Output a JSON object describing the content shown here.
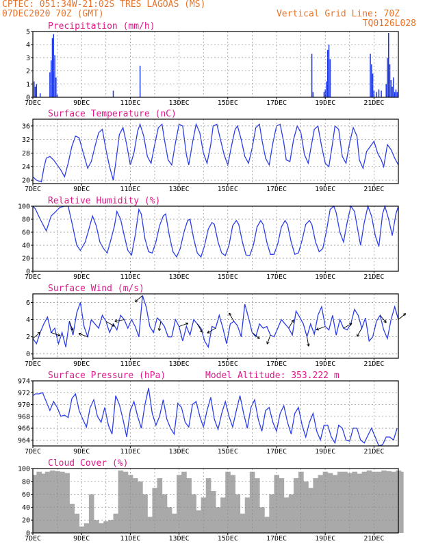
{
  "header": {
    "line1": "CPTEC:  051:34W-21:02S  TRES LAGOAS (MS)",
    "line2_left": "07DEC2020 70Z (GMT)",
    "line2_right": "Vertical Grid Line: 70Z",
    "line3_right": "TQ0126L028"
  },
  "x_axis": {
    "ticks": [
      {
        "d": 0,
        "label": "7DEC"
      },
      {
        "d": 2,
        "label": "9DEC"
      },
      {
        "d": 4,
        "label": "11DEC"
      },
      {
        "d": 6,
        "label": "13DEC"
      },
      {
        "d": 8,
        "label": "15DEC"
      },
      {
        "d": 10,
        "label": "17DEC"
      },
      {
        "d": 12,
        "label": "19DEC"
      },
      {
        "d": 14,
        "label": "21DEC"
      }
    ]
  },
  "chart_data": [
    {
      "id": "precip",
      "type": "bar",
      "title": "Precipitation (mm/h)",
      "ylim": [
        0,
        5
      ],
      "yticks": [
        0,
        1,
        2,
        3,
        4,
        5
      ],
      "color": "#1a36e8",
      "x_unit": "days since 07DEC2020 00Z",
      "x": [
        0.05,
        0.1,
        0.15,
        0.3,
        0.7,
        0.75,
        0.8,
        0.85,
        0.9,
        0.95,
        1.0,
        3.3,
        4.4,
        11.45,
        11.5,
        11.95,
        12.0,
        12.05,
        12.1,
        12.15,
        12.2,
        13.85,
        13.9,
        13.95,
        14.0,
        14.1,
        14.2,
        14.3,
        14.5,
        14.55,
        14.6,
        14.65,
        14.7,
        14.75,
        14.8,
        14.85,
        14.9,
        14.95
      ],
      "values": [
        1.2,
        0.8,
        1.0,
        0.3,
        1.9,
        2.8,
        4.5,
        4.8,
        3.2,
        1.5,
        0.2,
        0.5,
        2.4,
        3.3,
        0.4,
        0.4,
        0.6,
        1.2,
        3.6,
        4.0,
        2.9,
        3.3,
        2.5,
        1.8,
        0.5,
        0.4,
        0.6,
        0.5,
        1.0,
        3.0,
        4.9,
        2.5,
        1.3,
        0.8,
        1.5,
        0.4,
        0.6,
        0.4
      ]
    },
    {
      "id": "temp",
      "type": "line",
      "title": "Surface Temperature (nC)",
      "ylim": [
        19,
        38
      ],
      "yticks": [
        20,
        24,
        28,
        32,
        36
      ],
      "color": "#2a3de8",
      "x_unit": "days since 07DEC2020 00Z",
      "x": [
        0.0,
        0.15,
        0.35,
        0.45,
        0.55,
        0.7,
        0.85,
        1.0,
        1.15,
        1.3,
        1.45,
        1.6,
        1.75,
        1.9,
        2.05,
        2.25,
        2.4,
        2.55,
        2.7,
        2.85,
        3.0,
        3.15,
        3.3,
        3.4,
        3.55,
        3.7,
        3.85,
        4.0,
        4.15,
        4.3,
        4.4,
        4.55,
        4.7,
        4.85,
        5.0,
        5.15,
        5.3,
        5.4,
        5.55,
        5.7,
        5.85,
        6.0,
        6.15,
        6.3,
        6.4,
        6.55,
        6.7,
        6.85,
        7.0,
        7.15,
        7.3,
        7.4,
        7.55,
        7.7,
        7.85,
        8.0,
        8.15,
        8.3,
        8.4,
        8.55,
        8.7,
        8.85,
        9.0,
        9.15,
        9.3,
        9.4,
        9.55,
        9.7,
        9.85,
        10.0,
        10.15,
        10.3,
        10.4,
        10.55,
        10.7,
        10.85,
        11.0,
        11.15,
        11.3,
        11.4,
        11.55,
        11.7,
        11.85,
        12.0,
        12.15,
        12.3,
        12.4,
        12.55,
        12.7,
        12.85,
        13.0,
        13.15,
        13.3,
        13.4,
        13.55,
        13.7,
        13.85,
        14.0,
        14.15,
        14.3,
        14.4,
        14.55,
        14.7,
        14.85,
        15.0
      ],
      "values": [
        21.0,
        20.0,
        19.5,
        23.5,
        26.5,
        27.0,
        26.0,
        24.5,
        23.0,
        21.0,
        25.0,
        30.0,
        33.0,
        32.5,
        28.5,
        23.5,
        25.5,
        30.0,
        34.0,
        35.0,
        29.0,
        24.0,
        20.0,
        25.0,
        33.5,
        35.5,
        30.5,
        24.5,
        28.0,
        34.5,
        36.5,
        33.0,
        27.0,
        25.0,
        30.5,
        35.5,
        36.5,
        32.0,
        26.0,
        24.5,
        31.0,
        36.5,
        36.0,
        27.5,
        24.5,
        31.0,
        36.5,
        34.0,
        28.0,
        25.0,
        30.5,
        36.0,
        36.5,
        32.0,
        27.5,
        24.5,
        30.0,
        35.0,
        36.0,
        32.0,
        27.0,
        25.0,
        29.5,
        35.5,
        36.5,
        32.0,
        26.5,
        24.5,
        31.0,
        36.0,
        36.5,
        31.0,
        26.0,
        25.5,
        32.0,
        36.0,
        34.0,
        27.5,
        25.0,
        29.0,
        35.0,
        36.0,
        30.0,
        25.0,
        24.0,
        31.0,
        36.0,
        35.0,
        27.0,
        25.0,
        31.0,
        35.5,
        33.0,
        26.0,
        23.5,
        28.5,
        30.0,
        31.5,
        28.0,
        26.0,
        24.0,
        30.5,
        29.0,
        26.5,
        24.5
      ]
    },
    {
      "id": "rh",
      "type": "line",
      "title": "Relative Humidity (%)",
      "ylim": [
        0,
        100
      ],
      "yticks": [
        0,
        20,
        40,
        60,
        80,
        100
      ],
      "color": "#2a3de8",
      "x_unit": "days since 07DEC2020 00Z",
      "x": [
        0.0,
        0.1,
        0.3,
        0.55,
        0.75,
        0.95,
        1.1,
        1.3,
        1.45,
        1.6,
        1.8,
        1.95,
        2.15,
        2.3,
        2.45,
        2.6,
        2.75,
        2.9,
        3.05,
        3.2,
        3.35,
        3.45,
        3.6,
        3.75,
        3.9,
        4.05,
        4.2,
        4.35,
        4.45,
        4.6,
        4.75,
        4.9,
        5.05,
        5.2,
        5.35,
        5.45,
        5.6,
        5.75,
        5.9,
        6.05,
        6.2,
        6.35,
        6.45,
        6.6,
        6.75,
        6.9,
        7.05,
        7.2,
        7.35,
        7.45,
        7.6,
        7.75,
        7.9,
        8.05,
        8.2,
        8.35,
        8.45,
        8.6,
        8.75,
        8.9,
        9.05,
        9.2,
        9.35,
        9.45,
        9.6,
        9.75,
        9.9,
        10.05,
        10.2,
        10.35,
        10.45,
        10.6,
        10.75,
        10.9,
        11.05,
        11.2,
        11.35,
        11.45,
        11.6,
        11.75,
        11.9,
        12.05,
        12.2,
        12.35,
        12.45,
        12.6,
        12.75,
        12.9,
        13.05,
        13.2,
        13.35,
        13.45,
        13.6,
        13.75,
        13.9,
        14.05,
        14.2,
        14.35,
        14.45,
        14.6,
        14.75,
        14.9,
        15.0
      ],
      "values": [
        100,
        96,
        80,
        62,
        85,
        92,
        98,
        100,
        100,
        75,
        40,
        32,
        45,
        65,
        85,
        70,
        45,
        35,
        28,
        48,
        70,
        92,
        80,
        55,
        32,
        25,
        55,
        95,
        88,
        50,
        30,
        28,
        45,
        70,
        85,
        88,
        55,
        30,
        22,
        35,
        60,
        78,
        80,
        50,
        28,
        22,
        40,
        65,
        75,
        72,
        45,
        28,
        24,
        40,
        70,
        78,
        72,
        45,
        25,
        24,
        40,
        68,
        78,
        72,
        45,
        26,
        26,
        42,
        68,
        78,
        72,
        45,
        26,
        28,
        48,
        72,
        78,
        72,
        45,
        30,
        35,
        62,
        95,
        100,
        90,
        60,
        45,
        75,
        100,
        92,
        60,
        40,
        75,
        100,
        85,
        55,
        38,
        88,
        100,
        80,
        55,
        88,
        100
      ]
    },
    {
      "id": "wind",
      "type": "line",
      "title": "Surface Wind (m/s)",
      "ylim": [
        -0.5,
        7.0
      ],
      "yticks": [
        0,
        2,
        4,
        6
      ],
      "color": "#2a3de8",
      "x_unit": "days since 07DEC2020 00Z",
      "x": [
        0.0,
        0.15,
        0.3,
        0.45,
        0.6,
        0.75,
        0.9,
        1.05,
        1.2,
        1.35,
        1.5,
        1.65,
        1.8,
        1.95,
        2.1,
        2.25,
        2.4,
        2.55,
        2.7,
        2.85,
        3.0,
        3.15,
        3.3,
        3.45,
        3.6,
        3.75,
        3.9,
        4.05,
        4.2,
        4.35,
        4.5,
        4.65,
        4.8,
        4.95,
        5.1,
        5.25,
        5.4,
        5.55,
        5.7,
        5.85,
        6.0,
        6.15,
        6.3,
        6.45,
        6.6,
        6.75,
        6.9,
        7.05,
        7.2,
        7.35,
        7.5,
        7.65,
        7.8,
        7.95,
        8.1,
        8.25,
        8.4,
        8.55,
        8.7,
        8.85,
        9.0,
        9.15,
        9.3,
        9.45,
        9.6,
        9.75,
        9.9,
        10.05,
        10.2,
        10.35,
        10.5,
        10.65,
        10.8,
        10.95,
        11.1,
        11.25,
        11.4,
        11.55,
        11.7,
        11.85,
        12.0,
        12.15,
        12.3,
        12.45,
        12.6,
        12.75,
        12.9,
        13.05,
        13.2,
        13.35,
        13.5,
        13.65,
        13.8,
        13.95,
        14.1,
        14.25,
        14.4,
        14.55,
        14.7,
        14.85,
        15.0
      ],
      "values": [
        1.8,
        1.2,
        2.5,
        3.5,
        4.3,
        2.5,
        3.0,
        1.2,
        2.5,
        0.8,
        3.8,
        2.2,
        4.8,
        6.0,
        3.2,
        2.0,
        4.0,
        3.5,
        3.0,
        4.5,
        3.8,
        2.5,
        3.5,
        2.8,
        4.5,
        4.0,
        3.0,
        4.0,
        3.2,
        2.0,
        6.8,
        5.5,
        3.2,
        2.5,
        4.2,
        3.8,
        3.2,
        2.0,
        2.0,
        4.0,
        3.2,
        1.5,
        3.2,
        2.2,
        4.0,
        3.5,
        3.0,
        1.5,
        0.8,
        3.2,
        3.0,
        4.5,
        3.0,
        1.2,
        3.5,
        3.8,
        3.3,
        2.0,
        5.8,
        4.2,
        2.5,
        2.0,
        3.5,
        3.0,
        3.2,
        2.2,
        2.0,
        3.0,
        4.0,
        3.5,
        3.0,
        2.2,
        5.0,
        4.3,
        3.5,
        2.0,
        3.5,
        2.3,
        4.5,
        5.5,
        3.2,
        2.8,
        4.5,
        2.2,
        4.0,
        3.0,
        2.8,
        3.5,
        5.2,
        4.5,
        3.0,
        4.2,
        1.5,
        2.0,
        3.8,
        4.5,
        2.8,
        1.8,
        4.0,
        5.5,
        4.0
      ]
    },
    {
      "id": "pres",
      "type": "line",
      "title": "Surface Pressure (hPa)",
      "annotation": "Model Altitude: 353.222 m",
      "ylim": [
        963,
        974
      ],
      "yticks": [
        964,
        966,
        968,
        970,
        972,
        974
      ],
      "color": "#2a3de8",
      "x_unit": "days since 07DEC2020 00Z",
      "x": [
        0.0,
        0.1,
        0.25,
        0.4,
        0.55,
        0.7,
        0.85,
        1.0,
        1.15,
        1.3,
        1.45,
        1.6,
        1.75,
        1.9,
        2.05,
        2.2,
        2.35,
        2.5,
        2.65,
        2.8,
        2.95,
        3.1,
        3.25,
        3.4,
        3.55,
        3.7,
        3.85,
        4.0,
        4.15,
        4.3,
        4.45,
        4.6,
        4.75,
        4.9,
        5.05,
        5.2,
        5.35,
        5.5,
        5.65,
        5.8,
        5.95,
        6.1,
        6.25,
        6.4,
        6.55,
        6.7,
        6.85,
        7.0,
        7.15,
        7.3,
        7.45,
        7.6,
        7.75,
        7.9,
        8.05,
        8.2,
        8.35,
        8.5,
        8.65,
        8.8,
        8.95,
        9.1,
        9.25,
        9.4,
        9.55,
        9.7,
        9.85,
        10.0,
        10.15,
        10.3,
        10.45,
        10.6,
        10.75,
        10.9,
        11.05,
        11.2,
        11.35,
        11.5,
        11.65,
        11.8,
        11.95,
        12.1,
        12.25,
        12.4,
        12.55,
        12.7,
        12.85,
        13.0,
        13.15,
        13.3,
        13.45,
        13.6,
        13.75,
        13.9,
        14.05,
        14.2,
        14.35,
        14.5,
        14.65,
        14.8,
        14.95
      ],
      "values": [
        971.5,
        971.8,
        971.8,
        972.0,
        970.5,
        969.0,
        970.5,
        969.5,
        968.0,
        968.2,
        967.8,
        971.0,
        971.8,
        969.0,
        967.5,
        966.2,
        969.5,
        970.8,
        968.0,
        967.0,
        969.5,
        966.5,
        965.0,
        971.5,
        970.0,
        967.5,
        964.5,
        969.0,
        970.5,
        968.0,
        966.0,
        970.0,
        972.8,
        968.5,
        966.5,
        968.0,
        970.8,
        967.5,
        966.0,
        965.0,
        970.2,
        969.5,
        967.0,
        966.2,
        970.0,
        970.5,
        968.0,
        966.2,
        969.0,
        971.2,
        967.5,
        965.8,
        968.5,
        970.5,
        968.0,
        966.2,
        969.0,
        971.5,
        968.5,
        966.0,
        969.5,
        970.8,
        967.5,
        965.5,
        969.0,
        969.5,
        967.0,
        965.5,
        968.5,
        969.8,
        967.0,
        965.0,
        968.5,
        969.5,
        966.5,
        964.5,
        967.0,
        968.5,
        965.5,
        964.0,
        966.5,
        966.5,
        964.5,
        963.5,
        966.5,
        966.0,
        964.0,
        963.8,
        966.0,
        966.0,
        964.0,
        963.5,
        964.8,
        966.0,
        964.5,
        963.0,
        963.2,
        964.5,
        964.5,
        964.0,
        966.0
      ]
    },
    {
      "id": "cloud",
      "type": "area",
      "title": "Cloud Cover (%)",
      "ylim": [
        0,
        100
      ],
      "yticks": [
        0,
        20,
        40,
        60,
        80,
        100
      ],
      "color": "#a9a9a9",
      "x_unit": "days since 07DEC2020 00Z",
      "x": [
        0.0,
        0.15,
        0.3,
        0.5,
        0.7,
        0.9,
        1.1,
        1.3,
        1.5,
        1.7,
        1.9,
        2.1,
        2.3,
        2.5,
        2.7,
        2.9,
        3.1,
        3.3,
        3.5,
        3.7,
        3.9,
        4.1,
        4.3,
        4.5,
        4.7,
        4.9,
        5.1,
        5.3,
        5.5,
        5.7,
        5.9,
        6.1,
        6.3,
        6.5,
        6.7,
        6.9,
        7.1,
        7.3,
        7.5,
        7.7,
        7.9,
        8.1,
        8.3,
        8.5,
        8.7,
        8.9,
        9.1,
        9.3,
        9.5,
        9.7,
        9.9,
        10.1,
        10.3,
        10.5,
        10.7,
        10.9,
        11.1,
        11.3,
        11.5,
        11.7,
        11.9,
        12.1,
        12.3,
        12.5,
        12.7,
        12.9,
        13.1,
        13.3,
        13.5,
        13.7,
        13.9,
        14.1,
        14.3,
        14.5,
        14.7,
        14.9,
        15.0
      ],
      "values": [
        90,
        95,
        92,
        95,
        97,
        96,
        95,
        93,
        45,
        30,
        10,
        15,
        60,
        20,
        15,
        18,
        20,
        30,
        97,
        95,
        90,
        85,
        80,
        60,
        25,
        70,
        85,
        60,
        40,
        30,
        90,
        95,
        85,
        60,
        35,
        55,
        85,
        65,
        40,
        55,
        95,
        90,
        60,
        30,
        55,
        95,
        85,
        40,
        25,
        60,
        90,
        85,
        55,
        60,
        85,
        95,
        80,
        70,
        85,
        90,
        95,
        93,
        90,
        95,
        95,
        93,
        95,
        92,
        95,
        97,
        95,
        95,
        97,
        96,
        95,
        97,
        95
      ]
    }
  ]
}
